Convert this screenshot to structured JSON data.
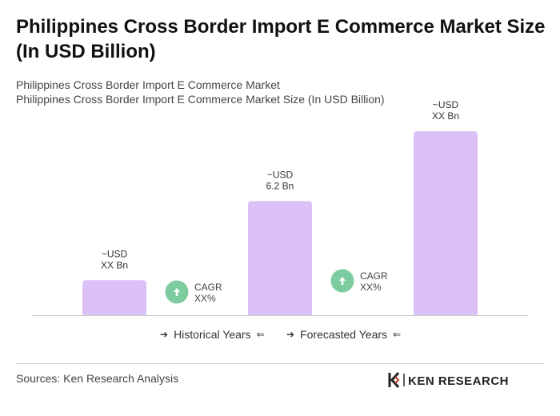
{
  "title": "Philippines Cross Border Import E Commerce Market Size (In USD Billion)",
  "subtitles": [
    "Philippines Cross Border Import E Commerce Market",
    "Philippines Cross Border Import E Commerce Market Size (In USD Billion)"
  ],
  "chart_data": {
    "type": "bar",
    "title": "Philippines Cross Border Import E Commerce Market Size (In USD Billion)",
    "categories": [
      "",
      "",
      ""
    ],
    "values": [
      1.9,
      6.2,
      10.0
    ],
    "bar_labels": [
      [
        "~USD",
        "XX Bn"
      ],
      [
        "~USD",
        "6.2 Bn"
      ],
      [
        "~USD",
        "XX Bn"
      ]
    ],
    "cagr_annotations": [
      {
        "line1": "CAGR",
        "line2": "XX%"
      },
      {
        "line1": "CAGR",
        "line2": "XX%"
      }
    ],
    "ylim": [
      0,
      10
    ],
    "grid": false,
    "colors": {
      "bar": "#dcc1f7",
      "cagr_circle": "#7ccc9f",
      "axis": "#cccccc"
    }
  },
  "legend": {
    "historical": "Historical Years",
    "forecast": "Forecasted Years"
  },
  "sources": "Sources: Ken Research Analysis",
  "logo": {
    "name": "ken-research-logo",
    "text": "KEN RESEARCH"
  }
}
